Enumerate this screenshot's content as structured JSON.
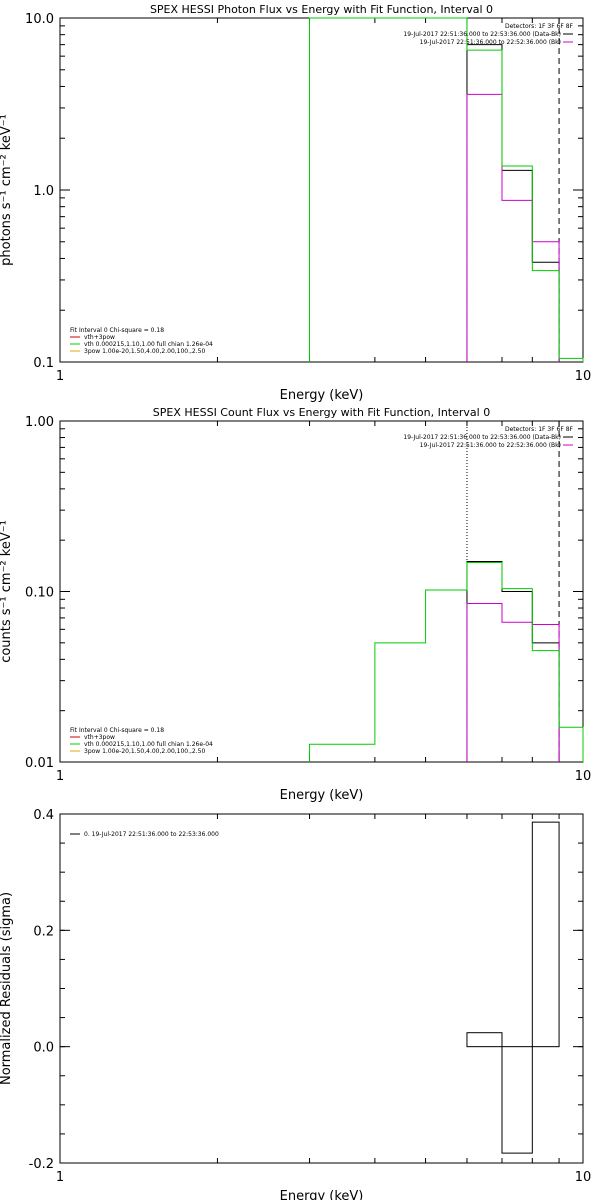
{
  "chart_data": [
    {
      "type": "line",
      "title": "SPEX HESSI Photon Flux vs Energy with Fit Function, Interval 0",
      "xlabel": "Energy (keV)",
      "ylabel": "photons s⁻¹ cm⁻² keV⁻¹",
      "xscale": "log",
      "yscale": "log",
      "xlim": [
        1,
        10
      ],
      "ylim": [
        0.1,
        10.0
      ],
      "xticks": [
        {
          "v": 1,
          "t": "1"
        },
        {
          "v": 10,
          "t": "10"
        }
      ],
      "yticks": [
        {
          "v": 0.1,
          "t": "0.1"
        },
        {
          "v": 1,
          "t": "1.0"
        },
        {
          "v": 10,
          "t": "10.0"
        }
      ],
      "legend_right": {
        "header": "Detectors: 1F 3F 6F 8F",
        "lines": [
          {
            "text": "19-Jul-2017 22:51:36.000 to 22:53:36.000 (Data-Bk)",
            "color": "#000000"
          },
          {
            "text": "19-Jul-2017 22:51:36.000 to 22:52:36.000 (Bk)",
            "color": "#cc00cc"
          }
        ]
      },
      "legend_left": [
        {
          "text": "Fit Interval 0   Chi-square = 0.18",
          "color": null
        },
        {
          "text": "vth+3pow",
          "color": "#cc0000"
        },
        {
          "text": "vth 0.000215,1.10,1.00  full chian 1.26e-04",
          "color": "#00cc00"
        },
        {
          "text": "3pow 1.00e-20,1.50,4.00,2.00,100.,2.50",
          "color": "#ddaa00"
        }
      ],
      "vlines": [
        {
          "x": 6.0,
          "style": "dotted"
        },
        {
          "x": 9.0,
          "style": "dashed"
        }
      ],
      "series": [
        {
          "name": "Data-Bk",
          "color": "#000000",
          "step": true,
          "edges": [
            6,
            7,
            8,
            9
          ],
          "values": [
            7.0,
            1.3,
            0.38
          ]
        },
        {
          "name": "Bk",
          "color": "#cc00cc",
          "step": true,
          "edges": [
            6,
            7,
            8,
            9
          ],
          "values": [
            3.6,
            0.87,
            0.5
          ]
        },
        {
          "name": "Fit",
          "color": "#00cc00",
          "step": true,
          "edges": [
            3,
            4,
            5,
            6,
            7,
            8,
            9,
            10
          ],
          "values": [
            10.0,
            10.0,
            10.0,
            6.5,
            1.38,
            0.34,
            0.105
          ]
        }
      ]
    },
    {
      "type": "line",
      "title": "SPEX HESSI Count Flux vs Energy with Fit Function, Interval 0",
      "xlabel": "Energy (keV)",
      "ylabel": "counts s⁻¹ cm⁻² keV⁻¹",
      "xscale": "log",
      "yscale": "log",
      "xlim": [
        1,
        10
      ],
      "ylim": [
        0.01,
        1.0
      ],
      "xticks": [
        {
          "v": 1,
          "t": "1"
        },
        {
          "v": 10,
          "t": "10"
        }
      ],
      "yticks": [
        {
          "v": 0.01,
          "t": "0.01"
        },
        {
          "v": 0.1,
          "t": "0.10"
        },
        {
          "v": 1,
          "t": "1.00"
        }
      ],
      "legend_right": {
        "header": "Detectors: 1F 3F 6F 8F",
        "lines": [
          {
            "text": "19-Jul-2017 22:51:36.000 to 22:53:36.000 (Data-Bk)",
            "color": "#000000"
          },
          {
            "text": "19-Jul-2017 22:51:36.000 to 22:52:36.000 (Bk)",
            "color": "#cc00cc"
          }
        ]
      },
      "legend_left": [
        {
          "text": "Fit Interval 0   Chi-square = 0.18",
          "color": null
        },
        {
          "text": "vth+3pow",
          "color": "#cc0000"
        },
        {
          "text": "vth 0.000215,1.10,1.00  full chian 1.26e-04",
          "color": "#00cc00"
        },
        {
          "text": "3pow 1.00e-20,1.50,4.00,2.00,100.,2.50",
          "color": "#ddaa00"
        }
      ],
      "vlines": [
        {
          "x": 6.0,
          "style": "dotted"
        },
        {
          "x": 9.0,
          "style": "dashed"
        }
      ],
      "series": [
        {
          "name": "Data-Bk",
          "color": "#000000",
          "step": true,
          "edges": [
            6,
            7,
            8,
            9
          ],
          "values": [
            0.15,
            0.1,
            0.05
          ]
        },
        {
          "name": "Bk",
          "color": "#cc00cc",
          "step": true,
          "edges": [
            6,
            7,
            8,
            9
          ],
          "values": [
            0.085,
            0.066,
            0.064
          ]
        },
        {
          "name": "Fit",
          "color": "#00cc00",
          "step": true,
          "edges": [
            3,
            4,
            5,
            6,
            7,
            8,
            9,
            10
          ],
          "values": [
            0.0127,
            0.05,
            0.102,
            0.148,
            0.104,
            0.045,
            0.016
          ]
        }
      ]
    },
    {
      "type": "line",
      "title": "",
      "xlabel": "Energy (keV)",
      "ylabel": "Normalized Residuals (sigma)",
      "xscale": "log",
      "yscale": "linear",
      "xlim": [
        1,
        10
      ],
      "ylim": [
        -0.2,
        0.4
      ],
      "xticks": [
        {
          "v": 1,
          "t": "1"
        },
        {
          "v": 10,
          "t": "10"
        }
      ],
      "yticks": [
        {
          "v": -0.2,
          "t": "-0.2"
        },
        {
          "v": 0.0,
          "t": "0.0"
        },
        {
          "v": 0.2,
          "t": "0.2"
        },
        {
          "v": 0.4,
          "t": "0.4"
        }
      ],
      "legend_inner": [
        {
          "text": "0. 19-Jul-2017 22:51:36.000 to 22:53:36.000",
          "color": "#000000"
        }
      ],
      "series": [
        {
          "name": "Residuals",
          "color": "#000000",
          "bars": true,
          "edges": [
            6,
            7,
            8,
            9
          ],
          "values": [
            0.024,
            -0.183,
            0.386
          ]
        }
      ]
    }
  ]
}
